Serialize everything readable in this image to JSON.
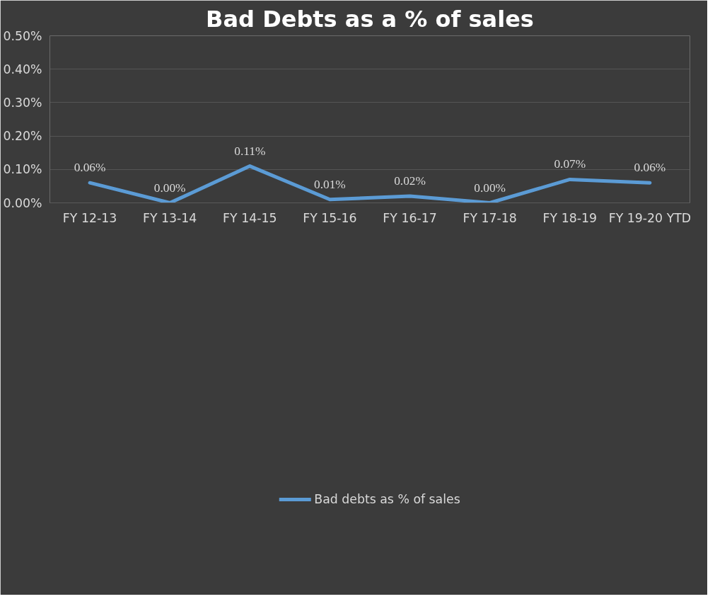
{
  "chart_data": {
    "type": "line",
    "title": "Bad Debts as a % of sales",
    "categories": [
      "FY 12-13",
      "FY 13-14",
      "FY 14-15",
      "FY 15-16",
      "FY 16-17",
      "FY 17-18",
      "FY 18-19",
      "FY 19-20 YTD"
    ],
    "series": [
      {
        "name": "Bad debts as % of sales",
        "color": "#5b9bd5",
        "values": [
          0.06,
          0.0,
          0.11,
          0.01,
          0.02,
          0.0,
          0.07,
          0.06
        ],
        "value_labels": [
          "0.06%",
          "0.00%",
          "0.11%",
          "0.01%",
          "0.02%",
          "0.00%",
          "0.07%",
          "0.06%"
        ]
      }
    ],
    "ylim": [
      0,
      0.5
    ],
    "yticks": [
      {
        "value": 0,
        "label": "0.00%"
      },
      {
        "value": 0.1,
        "label": "0.10%"
      },
      {
        "value": 0.2,
        "label": "0.20%"
      },
      {
        "value": 0.3,
        "label": "0.30%"
      },
      {
        "value": 0.4,
        "label": "0.40%"
      },
      {
        "value": 0.5,
        "label": "0.50%"
      }
    ],
    "grid": "y",
    "legend": "bottom",
    "marker": "none",
    "line_style": "solid"
  }
}
